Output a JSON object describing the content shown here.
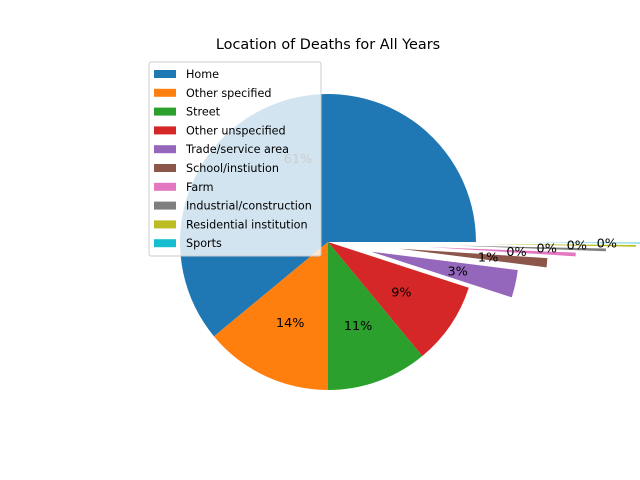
{
  "chart_data": {
    "type": "pie",
    "title": "Location of Deaths for All Years",
    "slices": [
      {
        "label": "Home",
        "value": 61,
        "pct_label": "61%",
        "color": "#1f77b4"
      },
      {
        "label": "Other specified",
        "value": 14,
        "pct_label": "14%",
        "color": "#ff7f0e"
      },
      {
        "label": "Street",
        "value": 11,
        "pct_label": "11%",
        "color": "#2ca02c"
      },
      {
        "label": "Other unspecified",
        "value": 9,
        "pct_label": "9%",
        "color": "#d62728"
      },
      {
        "label": "Trade/service area",
        "value": 3,
        "pct_label": "3%",
        "color": "#9467bd"
      },
      {
        "label": "School/instiution",
        "value": 1,
        "pct_label": "1%",
        "color": "#8c564b"
      },
      {
        "label": "Farm",
        "value": 0.4,
        "pct_label": "0%",
        "color": "#e377c2"
      },
      {
        "label": "Industrial/construction",
        "value": 0.3,
        "pct_label": "0%",
        "color": "#7f7f7f"
      },
      {
        "label": "Residential institution",
        "value": 0.2,
        "pct_label": "0%",
        "color": "#bcbd22"
      },
      {
        "label": "Sports",
        "value": 0.1,
        "pct_label": "0%",
        "color": "#17becf"
      }
    ],
    "legend_position": "upper left"
  }
}
